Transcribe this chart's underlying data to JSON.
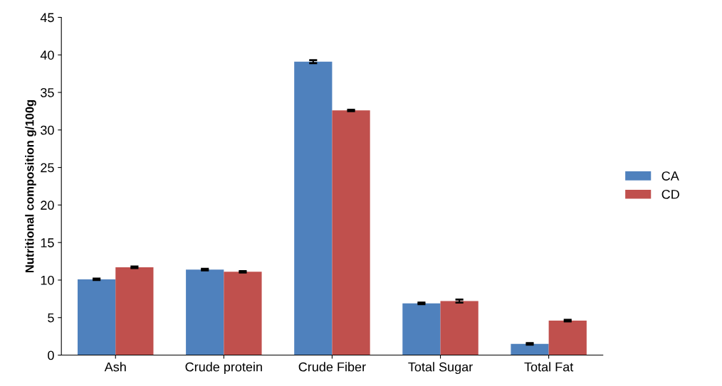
{
  "chart_data": {
    "type": "bar",
    "ylabel": "Nutritional composition g/100g",
    "categories": [
      "Ash",
      "Crude protein",
      "Crude Fiber",
      "Total Sugar",
      "Total Fat"
    ],
    "series": [
      {
        "name": "CA",
        "color": "#4f81bd",
        "values": [
          10.1,
          11.4,
          39.1,
          6.9,
          1.5
        ],
        "errors": [
          0.1,
          0.1,
          0.2,
          0.1,
          0.1
        ]
      },
      {
        "name": "CD",
        "color": "#c0504d",
        "values": [
          11.7,
          11.1,
          32.6,
          7.2,
          4.6
        ],
        "errors": [
          0.1,
          0.1,
          0.1,
          0.2,
          0.1
        ]
      }
    ],
    "ylim": [
      0,
      45
    ],
    "yticks": [
      0,
      5,
      10,
      15,
      20,
      25,
      30,
      35,
      40,
      45
    ],
    "grid": false,
    "legend": "right"
  }
}
